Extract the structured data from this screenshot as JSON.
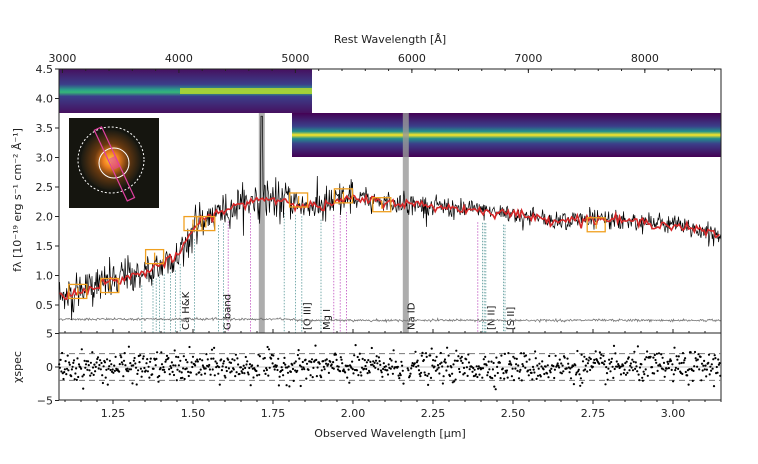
{
  "chart_data": [
    {
      "type": "line",
      "panel": "spectrum",
      "xlabel": "Observed Wavelength [μm]",
      "x2label": "Rest Wavelength [Å]",
      "ylabel": "fλ [10⁻¹⁹ erg s⁻¹ cm⁻² Å⁻¹]",
      "xlim": [
        1.08,
        3.15
      ],
      "ylim": [
        0.03,
        4.5
      ],
      "xticks": [
        "1.25",
        "1.50",
        "1.75",
        "2.00",
        "2.25",
        "2.50",
        "2.75",
        "3.00"
      ],
      "x2ticks": [
        "3000",
        "4000",
        "5000",
        "6000",
        "7000",
        "8000"
      ],
      "yticks": [
        "0.5",
        "1.0",
        "1.5",
        "2.0",
        "2.5",
        "3.0",
        "3.5",
        "4.0",
        "4.5"
      ],
      "one_plus_z": 3.64,
      "colors": {
        "data": "#000000",
        "model": "#d62728",
        "photometry": "#f0a020",
        "error": "#777777",
        "balmer": "#5a9a9a",
        "metal": "#c050c0",
        "telluric": "#999999"
      },
      "model": {
        "x": [
          1.08,
          1.15,
          1.2,
          1.25,
          1.3,
          1.35,
          1.4,
          1.45,
          1.47,
          1.5,
          1.55,
          1.6,
          1.65,
          1.7,
          1.75,
          1.8,
          1.85,
          1.9,
          1.95,
          2.0,
          2.1,
          2.2,
          2.3,
          2.4,
          2.5,
          2.6,
          2.7,
          2.8,
          2.9,
          3.0,
          3.1,
          3.15
        ],
        "y": [
          0.65,
          0.72,
          0.85,
          0.9,
          0.98,
          1.05,
          1.2,
          1.3,
          1.5,
          1.8,
          2.0,
          2.1,
          2.2,
          2.3,
          2.3,
          2.25,
          2.2,
          2.15,
          2.25,
          2.3,
          2.25,
          2.2,
          2.15,
          2.1,
          2.05,
          1.95,
          1.95,
          1.95,
          1.9,
          1.85,
          1.75,
          1.65
        ]
      },
      "photometry": {
        "x": [
          1.14,
          1.24,
          1.38,
          1.5,
          1.54,
          1.83,
          1.97,
          2.09,
          2.76
        ],
        "y": [
          0.73,
          0.83,
          1.32,
          1.88,
          1.88,
          2.28,
          2.35,
          2.2,
          1.86
        ]
      },
      "telluric_bands": [
        1.715,
        2.165
      ],
      "line_markers": [
        {
          "x": 1.34,
          "kind": "balmer"
        },
        {
          "x": 1.375,
          "kind": "balmer"
        },
        {
          "x": 1.385,
          "kind": "balmer"
        },
        {
          "x": 1.395,
          "kind": "balmer"
        },
        {
          "x": 1.41,
          "kind": "balmer"
        },
        {
          "x": 1.43,
          "kind": "balmer"
        },
        {
          "x": 1.445,
          "kind": "balmer"
        },
        {
          "x": 1.46,
          "kind": "balmer"
        },
        {
          "x": 1.505,
          "kind": "balmer"
        },
        {
          "x": 1.58,
          "kind": "balmer"
        },
        {
          "x": 1.595,
          "kind": "balmer"
        },
        {
          "x": 1.61,
          "kind": "metal"
        },
        {
          "x": 1.68,
          "kind": "metal"
        },
        {
          "x": 1.785,
          "kind": "balmer"
        },
        {
          "x": 1.82,
          "kind": "balmer"
        },
        {
          "x": 1.84,
          "kind": "balmer"
        },
        {
          "x": 1.9,
          "kind": "balmer"
        },
        {
          "x": 1.94,
          "kind": "metal"
        },
        {
          "x": 1.96,
          "kind": "metal"
        },
        {
          "x": 1.98,
          "kind": "metal"
        },
        {
          "x": 2.39,
          "kind": "metal"
        },
        {
          "x": 2.405,
          "kind": "balmer"
        },
        {
          "x": 2.41,
          "kind": "balmer"
        },
        {
          "x": 2.415,
          "kind": "balmer"
        },
        {
          "x": 2.47,
          "kind": "balmer"
        },
        {
          "x": 2.475,
          "kind": "balmer"
        }
      ],
      "line_labels": [
        {
          "text": "Ca H&K",
          "x": 1.475
        },
        {
          "text": "G band",
          "x": 1.605
        },
        {
          "text": "[O III]",
          "x": 1.855
        },
        {
          "text": "Mg I",
          "x": 1.915
        },
        {
          "text": "Na ID",
          "x": 2.18
        },
        {
          "text": "[N II]",
          "x": 2.43
        },
        {
          "text": "[S II]",
          "x": 2.49
        }
      ]
    },
    {
      "type": "scatter",
      "panel": "residuals",
      "ylabel": "χspec",
      "ylim": [
        -5,
        5
      ],
      "yticks": [
        "5",
        "0",
        "−5"
      ],
      "dashed_levels": [
        -2,
        2
      ]
    }
  ]
}
